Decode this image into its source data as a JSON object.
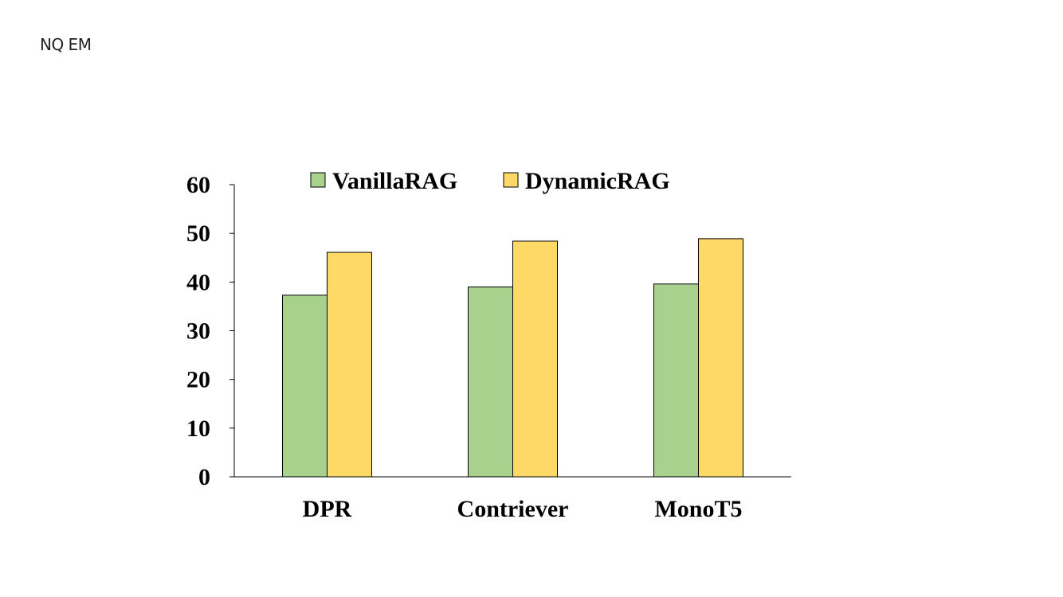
{
  "page": {
    "title": "NQ EM"
  },
  "chart_data": {
    "type": "bar",
    "categories": [
      "DPR",
      "Contriever",
      "MonoT5"
    ],
    "series": [
      {
        "name": "VanillaRAG",
        "values": [
          37.3,
          39.0,
          39.6
        ],
        "color": "#a9d18e"
      },
      {
        "name": "DynamicRAG",
        "values": [
          46.1,
          48.4,
          48.9
        ],
        "color": "#ffd966"
      }
    ],
    "ylim": [
      0,
      60
    ],
    "yticks": [
      0,
      10,
      20,
      30,
      40,
      50,
      60
    ],
    "grid": false,
    "legend": "top",
    "xlabel": "",
    "ylabel": ""
  }
}
